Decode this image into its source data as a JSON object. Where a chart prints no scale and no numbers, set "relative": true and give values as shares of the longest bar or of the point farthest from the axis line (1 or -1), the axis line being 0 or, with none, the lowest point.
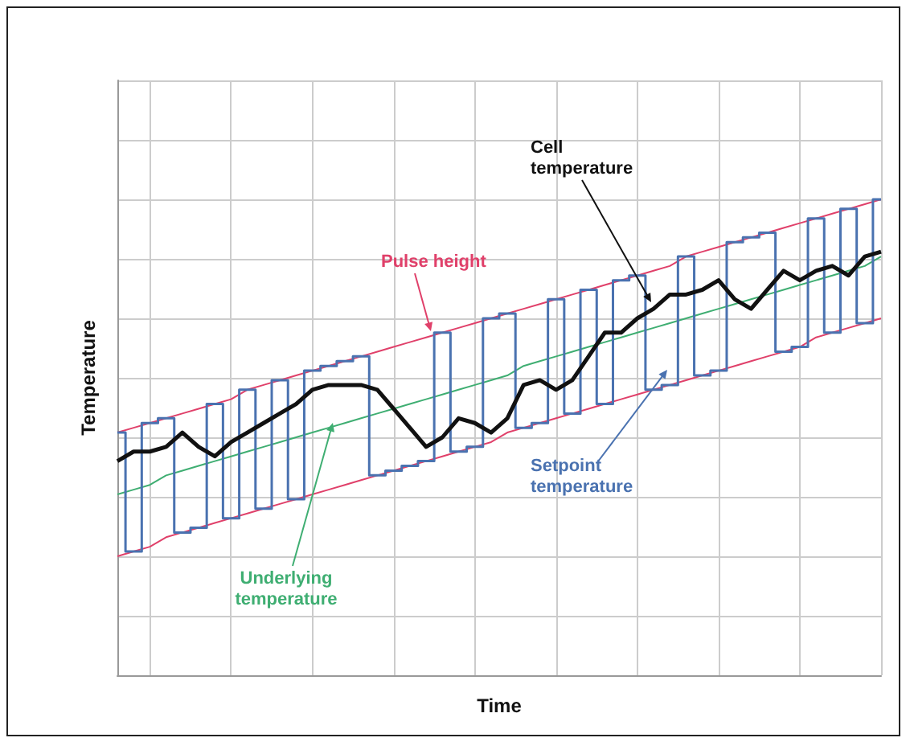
{
  "chart_data": {
    "type": "line",
    "relative": true,
    "xlabel": "Time",
    "ylabel": "Temperature",
    "grid": true,
    "legend": false,
    "marker": "none",
    "categories": [
      null,
      null,
      null,
      null,
      null,
      null,
      null,
      null,
      null,
      null,
      null,
      null,
      null,
      null,
      null,
      null,
      null,
      null,
      null,
      null,
      null,
      null,
      null,
      null,
      null,
      null,
      null,
      null,
      null,
      null,
      null,
      null,
      null,
      null,
      null,
      null,
      null,
      null,
      null,
      null,
      null,
      null,
      null,
      null,
      null,
      null,
      null,
      null
    ],
    "series": [
      {
        "name": "Pulse height",
        "color": "#e0406a",
        "values": [
          0.51,
          0.52,
          0.53,
          0.54,
          0.55,
          0.56,
          0.57,
          0.58,
          0.6,
          0.61,
          0.62,
          0.63,
          0.64,
          0.65,
          0.66,
          0.67,
          0.68,
          0.69,
          0.7,
          0.71,
          0.72,
          0.73,
          0.74,
          0.75,
          0.76,
          0.77,
          0.78,
          0.79,
          0.8,
          0.81,
          0.82,
          0.83,
          0.84,
          0.85,
          0.86,
          0.88,
          0.89,
          0.9,
          0.91,
          0.92,
          0.93,
          0.94,
          0.95,
          0.96,
          0.97,
          0.98,
          0.99,
          1.0
        ]
      },
      {
        "color": "#e0406a",
        "values": [
          0.25,
          0.26,
          0.27,
          0.29,
          0.3,
          0.31,
          0.32,
          0.33,
          0.34,
          0.35,
          0.36,
          0.37,
          0.38,
          0.39,
          0.4,
          0.41,
          0.42,
          0.43,
          0.44,
          0.45,
          0.46,
          0.47,
          0.48,
          0.49,
          0.51,
          0.52,
          0.53,
          0.54,
          0.55,
          0.56,
          0.57,
          0.58,
          0.59,
          0.6,
          0.61,
          0.62,
          0.63,
          0.64,
          0.65,
          0.66,
          0.67,
          0.68,
          0.69,
          0.71,
          0.72,
          0.73,
          0.74,
          0.75
        ]
      },
      {
        "name": "Underlying temperature",
        "color": "#3fae72",
        "values": [
          0.38,
          0.39,
          0.4,
          0.42,
          0.43,
          0.44,
          0.45,
          0.46,
          0.47,
          0.48,
          0.49,
          0.5,
          0.51,
          0.52,
          0.53,
          0.54,
          0.55,
          0.56,
          0.57,
          0.58,
          0.59,
          0.6,
          0.61,
          0.62,
          0.63,
          0.65,
          0.66,
          0.67,
          0.68,
          0.69,
          0.7,
          0.71,
          0.72,
          0.73,
          0.74,
          0.75,
          0.76,
          0.77,
          0.78,
          0.79,
          0.8,
          0.81,
          0.82,
          0.83,
          0.84,
          0.85,
          0.86,
          0.88
        ]
      },
      {
        "name": "Setpoint temperature",
        "type": "step",
        "color": "#4a72b0",
        "values": [
          0.51,
          0.26,
          0.53,
          0.54,
          0.3,
          0.31,
          0.57,
          0.33,
          0.6,
          0.35,
          0.62,
          0.37,
          0.64,
          0.65,
          0.66,
          0.67,
          0.42,
          0.43,
          0.44,
          0.45,
          0.72,
          0.47,
          0.48,
          0.75,
          0.76,
          0.52,
          0.53,
          0.79,
          0.55,
          0.81,
          0.57,
          0.83,
          0.84,
          0.6,
          0.61,
          0.88,
          0.63,
          0.64,
          0.91,
          0.92,
          0.93,
          0.68,
          0.69,
          0.96,
          0.72,
          0.98,
          0.74,
          1.0
        ]
      },
      {
        "name": "Cell temperature",
        "color": "#111111",
        "values": [
          0.45,
          0.47,
          0.47,
          0.48,
          0.51,
          0.48,
          0.46,
          0.49,
          0.51,
          0.53,
          0.55,
          0.57,
          0.6,
          0.61,
          0.61,
          0.61,
          0.6,
          0.56,
          0.52,
          0.48,
          0.5,
          0.54,
          0.53,
          0.51,
          0.54,
          0.61,
          0.62,
          0.6,
          0.62,
          0.67,
          0.72,
          0.72,
          0.75,
          0.77,
          0.8,
          0.8,
          0.81,
          0.83,
          0.79,
          0.77,
          0.81,
          0.85,
          0.83,
          0.85,
          0.86,
          0.84,
          0.88,
          0.89
        ]
      }
    ]
  }
}
